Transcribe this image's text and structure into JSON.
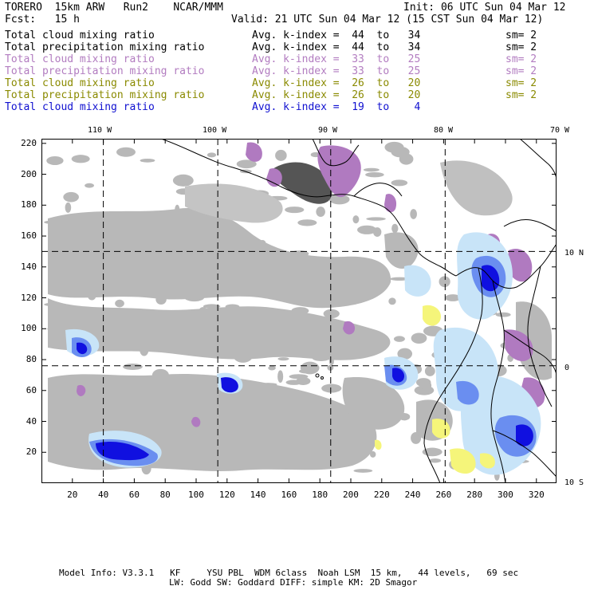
{
  "header": {
    "model": "TORERO  15km ARW   Run2    NCAR/MMM",
    "init": "Init: 06 UTC Sun 04 Mar 12",
    "fcst": "Fcst:   15 h",
    "valid": "Valid: 21 UTC Sun 04 Mar 12 (15 CST Sun 04 Mar 12)"
  },
  "legend": [
    {
      "field": "Total cloud mixing ratio",
      "range": "Avg. k-index =  44  to   34",
      "sm": "sm= 2",
      "color": "#000000"
    },
    {
      "field": "Total precipitation mixing ratio",
      "range": "Avg. k-index =  44  to   34",
      "sm": "sm= 2",
      "color": "#000000"
    },
    {
      "field": "Total cloud mixing ratio",
      "range": "Avg. k-index =  33  to   25",
      "sm": "sm= 2",
      "color": "#b27cc0"
    },
    {
      "field": "Total precipitation mixing ratio",
      "range": "Avg. k-index =  33  to   25",
      "sm": "sm= 2",
      "color": "#b27cc0"
    },
    {
      "field": "Total cloud mixing ratio",
      "range": "Avg. k-index =  26  to   20",
      "sm": "sm= 2",
      "color": "#8a8a00"
    },
    {
      "field": "Total precipitation mixing ratio",
      "range": "Avg. k-index =  26  to   20",
      "sm": "sm= 2",
      "color": "#8a8a00"
    },
    {
      "field": "Total cloud mixing ratio",
      "range": "Avg. k-index =  19  to    4",
      "sm": "",
      "color": "#1010d0"
    }
  ],
  "map": {
    "lon_labels": [
      "110 W",
      "100 W",
      "90 W",
      "80 W",
      "70 W"
    ],
    "lat_labels": [
      "10 N",
      "0",
      "10 S"
    ],
    "y_ticks": [
      20,
      40,
      60,
      80,
      100,
      120,
      140,
      160,
      180,
      200,
      220
    ],
    "x_ticks": [
      20,
      40,
      60,
      80,
      100,
      120,
      140,
      160,
      180,
      200,
      220,
      240,
      260,
      280,
      300,
      320
    ],
    "x_range": [
      0,
      333
    ],
    "y_range": [
      0,
      223
    ],
    "grid_x": [
      40,
      114,
      187,
      261
    ],
    "grid_y": [
      76,
      150
    ],
    "colors": {
      "cloud_gray": "#b8b8b8",
      "dark_gray": "#555555",
      "purple": "#b07ac0",
      "light_blue": "#c8e4f8",
      "mid_blue": "#6a8ef0",
      "deep_blue": "#1010e0",
      "yellow": "#f5f57a",
      "coast": "#000000"
    }
  },
  "footer": {
    "line1": "Model Info: V3.3.1   KF     YSU PBL  WDM 6class  Noah LSM  15 km,   44 levels,   69 sec",
    "line2": "LW: Godd SW: Goddard DIFF: simple KM: 2D Smagor"
  }
}
